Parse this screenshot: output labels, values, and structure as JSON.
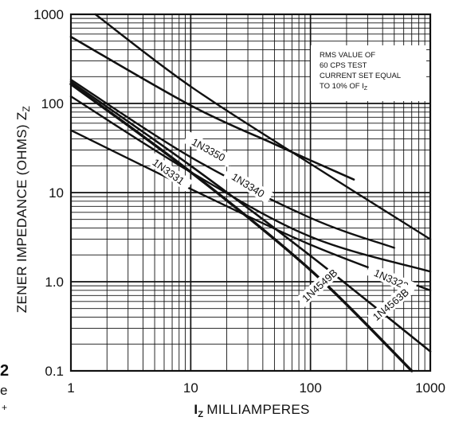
{
  "chart_data": {
    "type": "line",
    "xscale": "log",
    "yscale": "log",
    "xlim": [
      1,
      1000
    ],
    "ylim": [
      0.1,
      1000
    ],
    "x_ticks": [
      "1",
      "10",
      "100",
      "1000"
    ],
    "y_ticks": [
      "0.1",
      "1.0",
      "10",
      "100",
      "1000"
    ],
    "xlabel_main": "I",
    "xlabel_sub": "Z",
    "xlabel_rest": "MILLIAMPERES",
    "ylabel": "ZENER IMPEDANCE (OHMS) Z",
    "ylabel_sub": "Z",
    "grid": true,
    "note": [
      "RMS VALUE OF",
      "60 CPS TEST",
      "CURRENT SET EQUAL",
      "TO 10% OF I"
    ],
    "note_sub": "Z",
    "series": [
      {
        "name": "",
        "x": [
          1.6,
          10,
          100,
          1000
        ],
        "y": [
          1000,
          155,
          21,
          3.0
        ]
      },
      {
        "name": "1N3350",
        "x": [
          1,
          10,
          50,
          100,
          230
        ],
        "y": [
          560,
          95,
          35,
          23,
          14
        ]
      },
      {
        "name": "1N3340",
        "x": [
          1,
          10,
          100,
          500
        ],
        "y": [
          185,
          25,
          5.2,
          2.4
        ]
      },
      {
        "name": "1N3331",
        "x": [
          1,
          10,
          100,
          1000
        ],
        "y": [
          120,
          17,
          3.2,
          1.3
        ]
      },
      {
        "name": "1N3322",
        "x": [
          1,
          10,
          100,
          1000
        ],
        "y": [
          50,
          11,
          2.6,
          0.8
        ]
      },
      {
        "name": "1N4563B",
        "x": [
          1,
          10,
          100,
          1000
        ],
        "y": [
          175,
          20,
          1.95,
          0.165
        ]
      },
      {
        "name": "1N4549B",
        "x": [
          1,
          10,
          100,
          700
        ],
        "y": [
          165,
          17,
          1.35,
          0.1
        ]
      }
    ]
  },
  "edge_text": {
    "fig_num": "2",
    "caption_char": "e",
    "caption_mark": "+"
  }
}
